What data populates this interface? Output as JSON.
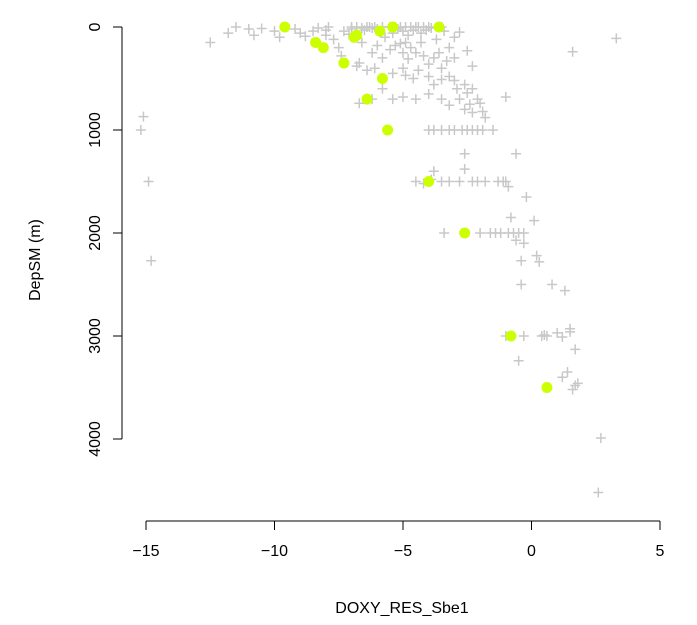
{
  "chart_data": {
    "type": "scatter",
    "title": "",
    "xlabel": "DOXY_RES_Sbe1",
    "ylabel": "DepSM (m)",
    "xlim": [
      -15.5,
      5
    ],
    "ylim": [
      4700,
      -100
    ],
    "y_inverted": true,
    "x_ticks": [
      -15,
      -10,
      -5,
      0,
      5
    ],
    "x_tick_labels": [
      "−15",
      "−10",
      "−5",
      "0",
      "5"
    ],
    "y_ticks": [
      0,
      1000,
      2000,
      3000,
      4000
    ],
    "y_tick_labels": [
      "0",
      "1000",
      "2000",
      "3000",
      "4000"
    ],
    "grid": false,
    "legend": "none",
    "series": [
      {
        "marker": "plus",
        "color": "#c8c8c8",
        "points": [
          [
            -11.5,
            0
          ],
          [
            -11.0,
            20
          ],
          [
            -10.5,
            15
          ],
          [
            -12.5,
            150
          ],
          [
            -11.8,
            60
          ],
          [
            -10.8,
            80
          ],
          [
            -10.0,
            40
          ],
          [
            -9.8,
            100
          ],
          [
            -9.2,
            20
          ],
          [
            -9.0,
            60
          ],
          [
            -8.8,
            90
          ],
          [
            -8.5,
            40
          ],
          [
            -8.3,
            10
          ],
          [
            -8.0,
            30
          ],
          [
            -8.0,
            80
          ],
          [
            -7.9,
            0
          ],
          [
            -7.7,
            120
          ],
          [
            -7.5,
            200
          ],
          [
            -7.3,
            40
          ],
          [
            -7.1,
            70
          ],
          [
            -7.0,
            20
          ],
          [
            -7.0,
            0
          ],
          [
            -6.8,
            0
          ],
          [
            -6.6,
            10
          ],
          [
            -6.5,
            30
          ],
          [
            -6.4,
            0
          ],
          [
            -6.3,
            0
          ],
          [
            -6.2,
            10
          ],
          [
            -6.1,
            0
          ],
          [
            -6.0,
            20
          ],
          [
            -5.9,
            50
          ],
          [
            -5.8,
            0
          ],
          [
            -5.7,
            100
          ],
          [
            -5.5,
            0
          ],
          [
            -5.4,
            60
          ],
          [
            -5.3,
            0
          ],
          [
            -5.2,
            20
          ],
          [
            -5.1,
            0
          ],
          [
            -5.0,
            40
          ],
          [
            -4.9,
            0
          ],
          [
            -4.8,
            80
          ],
          [
            -4.7,
            0
          ],
          [
            -4.6,
            30
          ],
          [
            -4.5,
            0
          ],
          [
            -4.4,
            0
          ],
          [
            -4.3,
            60
          ],
          [
            -4.2,
            0
          ],
          [
            -4.1,
            30
          ],
          [
            -4.0,
            0
          ],
          [
            -3.9,
            10
          ],
          [
            -3.7,
            120
          ],
          [
            -3.5,
            0
          ],
          [
            -3.4,
            40
          ],
          [
            -3.2,
            200
          ],
          [
            -3.0,
            100
          ],
          [
            -2.8,
            50
          ],
          [
            -2.5,
            230
          ],
          [
            -2.3,
            380
          ],
          [
            -6.6,
            150
          ],
          [
            -6.2,
            250
          ],
          [
            -6.0,
            180
          ],
          [
            -5.8,
            300
          ],
          [
            -5.5,
            220
          ],
          [
            -5.3,
            180
          ],
          [
            -5.1,
            160
          ],
          [
            -5.0,
            250
          ],
          [
            -4.9,
            150
          ],
          [
            -4.8,
            310
          ],
          [
            -4.7,
            200
          ],
          [
            -4.5,
            250
          ],
          [
            -4.3,
            150
          ],
          [
            -4.2,
            280
          ],
          [
            -4.0,
            360
          ],
          [
            -3.8,
            300
          ],
          [
            -3.6,
            250
          ],
          [
            -3.5,
            400
          ],
          [
            -3.3,
            330
          ],
          [
            -3.0,
            300
          ],
          [
            -7.4,
            280
          ],
          [
            -6.8,
            380
          ],
          [
            -6.7,
            350
          ],
          [
            -6.4,
            420
          ],
          [
            -6.1,
            400
          ],
          [
            -5.4,
            450
          ],
          [
            -5.0,
            400
          ],
          [
            -4.9,
            470
          ],
          [
            -4.6,
            500
          ],
          [
            -4.4,
            420
          ],
          [
            -4.0,
            480
          ],
          [
            -3.8,
            560
          ],
          [
            -3.5,
            510
          ],
          [
            -3.2,
            480
          ],
          [
            -3.0,
            520
          ],
          [
            -2.9,
            600
          ],
          [
            -2.6,
            560
          ],
          [
            -2.5,
            640
          ],
          [
            -2.3,
            600
          ],
          [
            -2.1,
            700
          ],
          [
            -2.0,
            740
          ],
          [
            -1.9,
            820
          ],
          [
            -1.8,
            880
          ],
          [
            -1.5,
            1000
          ],
          [
            -1.0,
            680
          ],
          [
            -6.7,
            740
          ],
          [
            -6.2,
            700
          ],
          [
            -5.8,
            600
          ],
          [
            -5.4,
            700
          ],
          [
            -5.0,
            680
          ],
          [
            -4.5,
            700
          ],
          [
            -4.0,
            650
          ],
          [
            -3.5,
            700
          ],
          [
            -3.2,
            760
          ],
          [
            -2.8,
            700
          ],
          [
            -2.6,
            800
          ],
          [
            -2.4,
            750
          ],
          [
            -2.3,
            830
          ],
          [
            -4.0,
            1000
          ],
          [
            -3.8,
            1000
          ],
          [
            -3.5,
            1000
          ],
          [
            -3.2,
            1000
          ],
          [
            -3.0,
            1000
          ],
          [
            -2.7,
            1000
          ],
          [
            -2.5,
            1000
          ],
          [
            -2.3,
            1000
          ],
          [
            -2.1,
            1000
          ],
          [
            -1.9,
            1000
          ],
          [
            -15.2,
            1000
          ],
          [
            -15.1,
            870
          ],
          [
            -14.9,
            1500
          ],
          [
            -14.8,
            2270
          ],
          [
            -4.5,
            1500
          ],
          [
            -4.2,
            1520
          ],
          [
            -3.9,
            1480
          ],
          [
            -3.8,
            1400
          ],
          [
            -3.5,
            1500
          ],
          [
            -3.2,
            1500
          ],
          [
            -2.8,
            1500
          ],
          [
            -2.6,
            1380
          ],
          [
            -2.6,
            1230
          ],
          [
            -2.3,
            1500
          ],
          [
            -2.1,
            1500
          ],
          [
            -1.8,
            1500
          ],
          [
            -1.3,
            1500
          ],
          [
            -1.1,
            1500
          ],
          [
            -1.0,
            1500
          ],
          [
            -0.9,
            1550
          ],
          [
            -0.6,
            1230
          ],
          [
            -0.2,
            1650
          ],
          [
            -3.4,
            2000
          ],
          [
            -2.0,
            2000
          ],
          [
            -1.6,
            2000
          ],
          [
            -1.4,
            2000
          ],
          [
            -1.2,
            2000
          ],
          [
            -0.9,
            2000
          ],
          [
            -0.7,
            2000
          ],
          [
            -0.5,
            2000
          ],
          [
            -0.3,
            2000
          ],
          [
            -0.8,
            1850
          ],
          [
            -0.6,
            2070
          ],
          [
            -0.3,
            2100
          ],
          [
            0.1,
            1880
          ],
          [
            0.2,
            2220
          ],
          [
            0.3,
            2280
          ],
          [
            -0.4,
            2270
          ],
          [
            -0.4,
            2500
          ],
          [
            0.8,
            2500
          ],
          [
            1.3,
            2560
          ],
          [
            -1.0,
            3000
          ],
          [
            -0.3,
            3000
          ],
          [
            0.4,
            3000
          ],
          [
            0.5,
            2990
          ],
          [
            0.6,
            3000
          ],
          [
            1.0,
            2970
          ],
          [
            1.2,
            3010
          ],
          [
            1.5,
            2930
          ],
          [
            1.5,
            2960
          ],
          [
            1.7,
            3130
          ],
          [
            -0.5,
            3240
          ],
          [
            1.2,
            3400
          ],
          [
            1.4,
            3350
          ],
          [
            1.6,
            3520
          ],
          [
            1.7,
            3480
          ],
          [
            1.8,
            3460
          ],
          [
            2.7,
            3990
          ],
          [
            2.6,
            4520
          ],
          [
            1.6,
            240
          ],
          [
            3.3,
            110
          ]
        ]
      },
      {
        "marker": "circle",
        "color": "#ccff00",
        "points": [
          [
            -9.6,
            0
          ],
          [
            -5.4,
            0
          ],
          [
            -3.6,
            0
          ],
          [
            -5.9,
            40
          ],
          [
            -6.8,
            80
          ],
          [
            -6.9,
            100
          ],
          [
            -8.4,
            150
          ],
          [
            -8.1,
            200
          ],
          [
            -7.3,
            350
          ],
          [
            -5.8,
            500
          ],
          [
            -6.4,
            700
          ],
          [
            -5.6,
            1000
          ],
          [
            -4.0,
            1500
          ],
          [
            -2.6,
            2000
          ],
          [
            -0.8,
            3000
          ],
          [
            0.6,
            3500
          ]
        ]
      }
    ]
  }
}
